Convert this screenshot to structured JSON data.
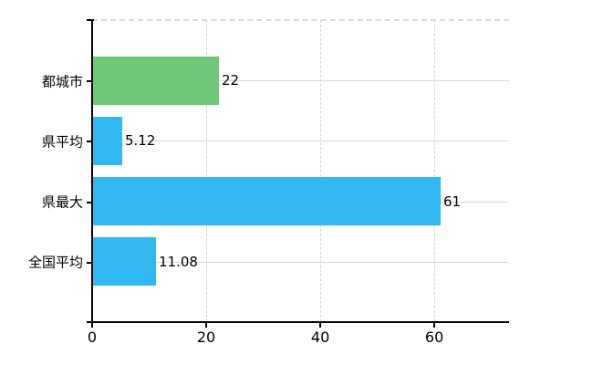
{
  "chart_data": {
    "type": "bar",
    "orientation": "horizontal",
    "title": "",
    "xlabel": "",
    "ylabel": "",
    "categories": [
      "都城市",
      "県平均",
      "県最大",
      "全国平均"
    ],
    "values": [
      22,
      5.12,
      61,
      11.08
    ],
    "value_labels": [
      "22",
      "5.12",
      "61",
      "11.08"
    ],
    "bar_colors": [
      "#6ec877",
      "#31b8f0",
      "#31b8f0",
      "#31b8f0"
    ],
    "x_tick_values": [
      0,
      20,
      40,
      60
    ],
    "x_tick_labels": [
      "0",
      "20",
      "40",
      "60"
    ],
    "xlim": [
      0,
      73.1
    ],
    "grid": true,
    "legend_position": "none",
    "colors": {
      "background": "#ffffff",
      "axis": "#000000",
      "gridline_horizontal": "#d2dad2",
      "gridline_vertical": "#ccd4d4",
      "top_border": "#d6dcd6",
      "text": "#000000",
      "green_bar": "#6ec877",
      "blue_bar": "#31b8f0"
    }
  }
}
